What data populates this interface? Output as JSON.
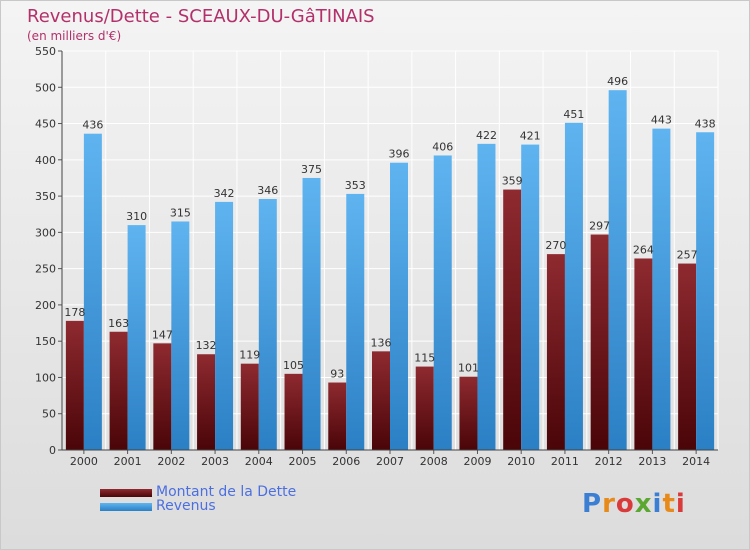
{
  "title": "Revenus/Dette - SCEAUX-DU-GâTINAIS",
  "subtitle": "(en milliers d'€)",
  "logo_text": "Proxiti",
  "chart_data": {
    "type": "bar",
    "title": "Revenus/Dette - SCEAUX-DU-GâTINAIS",
    "subtitle": "(en milliers d'€)",
    "categories": [
      "2000",
      "2001",
      "2002",
      "2003",
      "2004",
      "2005",
      "2006",
      "2007",
      "2008",
      "2009",
      "2010",
      "2011",
      "2012",
      "2013",
      "2014"
    ],
    "series": [
      {
        "name": "Montant de la Dette",
        "color": "#7a1f25",
        "values": [
          178,
          163,
          147,
          132,
          119,
          105,
          93,
          136,
          115,
          101,
          359,
          270,
          297,
          264,
          257
        ]
      },
      {
        "name": "Revenus",
        "color": "#4aa3e6",
        "values": [
          436,
          310,
          315,
          342,
          346,
          375,
          353,
          396,
          406,
          422,
          421,
          451,
          496,
          443,
          438
        ]
      }
    ],
    "ylim": [
      0,
      550
    ],
    "yticks": [
      0,
      50,
      100,
      150,
      200,
      250,
      300,
      350,
      400,
      450,
      500,
      550
    ],
    "grid": true,
    "legend_position": "bottom-left"
  }
}
